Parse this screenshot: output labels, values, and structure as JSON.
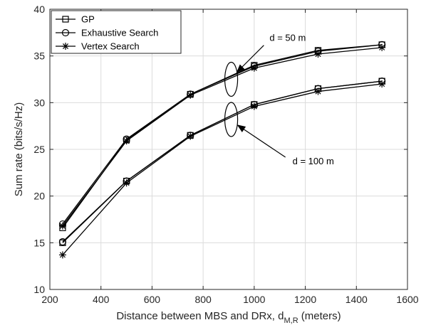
{
  "chart_data": {
    "type": "line",
    "xlabel_main": "Distance between MBS and DRx, d",
    "xlabel_sub": "M,R",
    "xlabel_tail": " (meters)",
    "ylabel": "Sum rate (bits/s/Hz)",
    "xlim": [
      200,
      1600
    ],
    "ylim": [
      10,
      40
    ],
    "xticks": [
      200,
      400,
      600,
      800,
      1000,
      1200,
      1400,
      1600
    ],
    "yticks": [
      10,
      15,
      20,
      25,
      30,
      35,
      40
    ],
    "grid": true,
    "legend_position": "top-left",
    "x": [
      250,
      500,
      750,
      1000,
      1250,
      1500
    ],
    "series": [
      {
        "name": "GP",
        "marker": "square",
        "group": "d = 50 m",
        "values": [
          16.6,
          26.0,
          30.9,
          34.0,
          35.6,
          36.2
        ]
      },
      {
        "name": "Exhaustive Search",
        "marker": "circle",
        "group": "d = 50 m",
        "values": [
          17.0,
          26.1,
          30.9,
          33.9,
          35.5,
          36.2
        ]
      },
      {
        "name": "Vertex Search",
        "marker": "asterisk",
        "group": "d = 50 m",
        "values": [
          16.8,
          25.9,
          30.8,
          33.7,
          35.2,
          35.9
        ]
      },
      {
        "name": "GP",
        "marker": "square",
        "group": "d = 100 m",
        "values": [
          15.0,
          21.6,
          26.5,
          29.8,
          31.5,
          32.3
        ]
      },
      {
        "name": "Exhaustive Search",
        "marker": "circle",
        "group": "d = 100 m",
        "values": [
          15.1,
          21.6,
          26.5,
          29.8,
          31.5,
          32.3
        ]
      },
      {
        "name": "Vertex Search",
        "marker": "asterisk",
        "group": "d = 100 m",
        "values": [
          13.7,
          21.4,
          26.4,
          29.6,
          31.2,
          32.0
        ]
      }
    ],
    "legend": [
      "GP",
      "Exhaustive Search",
      "Vertex Search"
    ],
    "annotations": [
      {
        "text": "d = 50 m",
        "arrow_to": [
          910,
          32.5
        ],
        "text_at": [
          1060,
          36.6
        ]
      },
      {
        "text": "d = 100 m",
        "arrow_to": [
          910,
          28.2
        ],
        "text_at": [
          1150,
          23.4
        ]
      }
    ]
  }
}
